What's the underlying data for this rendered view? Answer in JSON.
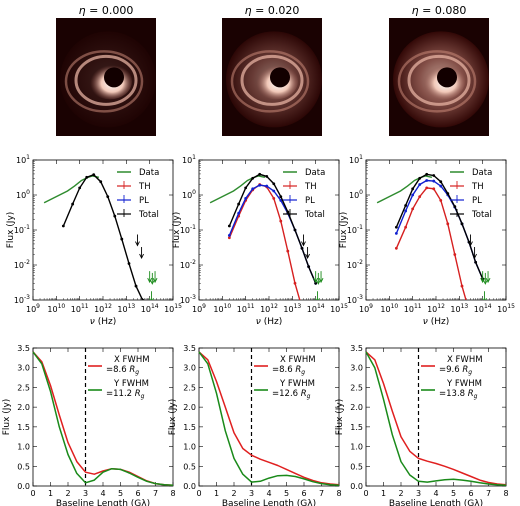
{
  "colors": {
    "data": "#2e8b2e",
    "th": "#d62020",
    "pl": "#1020d0",
    "total": "#000000",
    "green": "#1a8a1a",
    "red": "#e02020"
  },
  "images": {
    "panels": [
      {
        "eta_symbol": "η",
        "eta_value": "= 0.000",
        "glow": 0.15
      },
      {
        "eta_symbol": "η",
        "eta_value": "= 0.020",
        "glow": 0.55
      },
      {
        "eta_symbol": "η",
        "eta_value": "= 0.080",
        "glow": 0.75
      }
    ]
  },
  "sed": {
    "xlabel_symbol": "ν",
    "xlabel_unit": "(Hz)",
    "ylabel": "Flux (Jy)",
    "xticks": [
      {
        "exp": 9,
        "base": "10",
        "sup": "9"
      },
      {
        "exp": 10,
        "base": "10",
        "sup": "10"
      },
      {
        "exp": 11,
        "base": "10",
        "sup": "11"
      },
      {
        "exp": 12,
        "base": "10",
        "sup": "12"
      },
      {
        "exp": 13,
        "base": "10",
        "sup": "13"
      },
      {
        "exp": 14,
        "base": "10",
        "sup": "14"
      },
      {
        "exp": 15,
        "base": "10",
        "sup": "15"
      }
    ],
    "yticks": [
      {
        "exp": -3,
        "base": "10",
        "sup": "-3"
      },
      {
        "exp": -2,
        "base": "10",
        "sup": "-2"
      },
      {
        "exp": -1,
        "base": "10",
        "sup": "-1"
      },
      {
        "exp": 0,
        "base": "10",
        "sup": "0"
      },
      {
        "exp": 1,
        "base": "10",
        "sup": "1"
      }
    ],
    "legend": [
      "Data",
      "TH",
      "PL",
      "Total"
    ]
  },
  "vis": {
    "xlabel": "Baseline Length (Gλ)",
    "ylabel": "Flux (Jy)",
    "xticks": [
      "0",
      "1",
      "2",
      "3",
      "4",
      "5",
      "6",
      "7",
      "8"
    ],
    "yticks": [
      "0.0",
      "0.5",
      "1.0",
      "1.5",
      "2.0",
      "2.5",
      "3.0",
      "3.5"
    ],
    "legend_x_label": "X FWHM",
    "legend_y_label": "Y FWHM",
    "unit_symbol": "R",
    "unit_sub": "g",
    "panels": [
      {
        "x_fwhm": "=8.6",
        "y_fwhm": "=11.2"
      },
      {
        "x_fwhm": "=8.6",
        "y_fwhm": "=12.6"
      },
      {
        "x_fwhm": "=9.6",
        "y_fwhm": "=13.8"
      }
    ]
  },
  "chart_data": [
    {
      "type": "line",
      "title": "",
      "xlabel": "ν (Hz)",
      "ylabel": "Flux (Jy)",
      "xscale": "log",
      "yscale": "log",
      "xlim": [
        1000000000.0,
        1000000000000000.0
      ],
      "ylim": [
        0.001,
        10.0
      ],
      "series": [
        {
          "name": "Data",
          "x": [
            3000000000.0,
            10000000000.0,
            30000000000.0,
            60000000000.0,
            120000000000.0,
            230000000000.0,
            350000000000.0,
            670000000000.0
          ],
          "y": [
            0.6,
            0.9,
            1.3,
            1.8,
            2.6,
            3.2,
            3.5,
            3.2
          ]
        },
        {
          "name": "TH",
          "x": [],
          "y": []
        },
        {
          "name": "PL",
          "x": [],
          "y": []
        },
        {
          "name": "Total",
          "x": [
            20000000000.0,
            50000000000.0,
            100000000000.0,
            200000000000.0,
            400000000000.0,
            800000000000.0,
            1600000000000.0,
            3200000000000.0,
            6400000000000.0,
            13000000000000.0,
            26000000000000.0,
            50000000000000.0
          ],
          "y": [
            0.13,
            0.55,
            1.6,
            3.2,
            3.8,
            2.4,
            0.9,
            0.25,
            0.055,
            0.011,
            0.0025,
            0.001
          ]
        },
        {
          "name": "Upper limits",
          "x": [
            30000000000000.0,
            45000000000000.0,
            100000000000000.0,
            130000000000000.0,
            170000000000000.0,
            120000000000000.0
          ],
          "y": [
            0.05,
            0.022,
            0.0045,
            0.004,
            0.0045,
            0.0012
          ]
        }
      ],
      "legend": "top-right"
    },
    {
      "type": "line",
      "title": "",
      "xlabel": "ν (Hz)",
      "ylabel": "Flux (Jy)",
      "xscale": "log",
      "yscale": "log",
      "xlim": [
        1000000000.0,
        1000000000000000.0
      ],
      "ylim": [
        0.001,
        10.0
      ],
      "series": [
        {
          "name": "Data",
          "x": [
            3000000000.0,
            10000000000.0,
            30000000000.0,
            60000000000.0,
            120000000000.0,
            230000000000.0,
            350000000000.0,
            670000000000.0
          ],
          "y": [
            0.6,
            0.9,
            1.3,
            1.8,
            2.6,
            3.2,
            3.5,
            3.2
          ]
        },
        {
          "name": "TH",
          "x": [
            20000000000.0,
            50000000000.0,
            100000000000.0,
            200000000000.0,
            400000000000.0,
            800000000000.0,
            1600000000000.0,
            3200000000000.0,
            6400000000000.0,
            13000000000000.0,
            26000000000000.0
          ],
          "y": [
            0.06,
            0.25,
            0.7,
            1.4,
            2.0,
            1.7,
            0.8,
            0.18,
            0.025,
            0.003,
            0.0006
          ]
        },
        {
          "name": "PL",
          "x": [
            20000000000.0,
            50000000000.0,
            100000000000.0,
            200000000000.0,
            400000000000.0,
            800000000000.0,
            1600000000000.0,
            3200000000000.0,
            6400000000000.0,
            13000000000000.0,
            26000000000000.0,
            50000000000000.0,
            100000000000000.0
          ],
          "y": [
            0.07,
            0.3,
            0.8,
            1.5,
            1.9,
            1.8,
            1.3,
            0.7,
            0.3,
            0.1,
            0.03,
            0.009,
            0.003
          ]
        },
        {
          "name": "Total",
          "x": [
            20000000000.0,
            50000000000.0,
            100000000000.0,
            200000000000.0,
            400000000000.0,
            800000000000.0,
            1600000000000.0,
            3200000000000.0,
            6400000000000.0,
            13000000000000.0,
            26000000000000.0,
            50000000000000.0,
            100000000000000.0
          ],
          "y": [
            0.13,
            0.55,
            1.6,
            3.0,
            3.9,
            3.4,
            2.1,
            0.9,
            0.33,
            0.1,
            0.03,
            0.009,
            0.003
          ]
        },
        {
          "name": "Upper limits",
          "x": [
            30000000000000.0,
            45000000000000.0,
            100000000000000.0,
            130000000000000.0,
            170000000000000.0,
            120000000000000.0
          ],
          "y": [
            0.05,
            0.022,
            0.0045,
            0.004,
            0.0045,
            0.0012
          ]
        }
      ],
      "legend": "top-right"
    },
    {
      "type": "line",
      "title": "",
      "xlabel": "ν (Hz)",
      "ylabel": "Flux (Jy)",
      "xscale": "log",
      "yscale": "log",
      "xlim": [
        1000000000.0,
        1000000000000000.0
      ],
      "ylim": [
        0.001,
        10.0
      ],
      "series": [
        {
          "name": "Data",
          "x": [
            3000000000.0,
            10000000000.0,
            30000000000.0,
            60000000000.0,
            120000000000.0,
            230000000000.0,
            350000000000.0,
            670000000000.0
          ],
          "y": [
            0.6,
            0.9,
            1.3,
            1.8,
            2.6,
            3.2,
            3.5,
            3.2
          ]
        },
        {
          "name": "TH",
          "x": [
            20000000000.0,
            50000000000.0,
            100000000000.0,
            200000000000.0,
            400000000000.0,
            800000000000.0,
            1600000000000.0,
            3200000000000.0,
            6400000000000.0,
            13000000000000.0,
            26000000000000.0
          ],
          "y": [
            0.03,
            0.12,
            0.4,
            0.9,
            1.6,
            1.5,
            0.7,
            0.15,
            0.02,
            0.0025,
            0.0005
          ]
        },
        {
          "name": "PL",
          "x": [
            20000000000.0,
            50000000000.0,
            100000000000.0,
            200000000000.0,
            400000000000.0,
            800000000000.0,
            1600000000000.0,
            3200000000000.0,
            6400000000000.0,
            13000000000000.0,
            26000000000000.0,
            50000000000000.0,
            100000000000000.0
          ],
          "y": [
            0.08,
            0.35,
            1.0,
            2.0,
            2.6,
            2.5,
            1.8,
            1.0,
            0.45,
            0.15,
            0.045,
            0.012,
            0.004
          ]
        },
        {
          "name": "Total",
          "x": [
            20000000000.0,
            50000000000.0,
            100000000000.0,
            200000000000.0,
            400000000000.0,
            800000000000.0,
            1600000000000.0,
            3200000000000.0,
            6400000000000.0,
            13000000000000.0,
            26000000000000.0,
            50000000000000.0,
            100000000000000.0
          ],
          "y": [
            0.12,
            0.5,
            1.5,
            3.0,
            3.9,
            3.6,
            2.4,
            1.1,
            0.47,
            0.15,
            0.045,
            0.012,
            0.004
          ]
        },
        {
          "name": "Upper limits",
          "x": [
            30000000000000.0,
            45000000000000.0,
            100000000000000.0,
            130000000000000.0,
            170000000000000.0,
            120000000000000.0
          ],
          "y": [
            0.05,
            0.022,
            0.0045,
            0.004,
            0.0045,
            0.0012
          ]
        }
      ],
      "legend": "top-right"
    },
    {
      "type": "line",
      "title": "",
      "xlabel": "Baseline Length (Gλ)",
      "ylabel": "Flux (Jy)",
      "xlim": [
        0,
        8
      ],
      "ylim": [
        0,
        3.5
      ],
      "vline": 3,
      "series": [
        {
          "name": "X FWHM =8.6 Rg",
          "x": [
            0,
            0.5,
            1,
            1.5,
            2,
            2.5,
            3,
            3.5,
            4,
            4.5,
            5,
            5.5,
            6,
            6.5,
            7,
            7.5,
            8
          ],
          "y": [
            3.4,
            3.15,
            2.55,
            1.8,
            1.1,
            0.62,
            0.35,
            0.3,
            0.38,
            0.44,
            0.42,
            0.35,
            0.24,
            0.13,
            0.06,
            0.03,
            0.02
          ]
        },
        {
          "name": "Y FWHM =11.2 Rg",
          "x": [
            0,
            0.5,
            1,
            1.5,
            2,
            2.5,
            3,
            3.5,
            4,
            4.5,
            5,
            5.5,
            6,
            6.5,
            7,
            7.5,
            8
          ],
          "y": [
            3.4,
            3.1,
            2.4,
            1.5,
            0.8,
            0.32,
            0.08,
            0.15,
            0.35,
            0.44,
            0.42,
            0.33,
            0.22,
            0.12,
            0.06,
            0.03,
            0.02
          ]
        }
      ],
      "legend": "top-right"
    },
    {
      "type": "line",
      "title": "",
      "xlabel": "Baseline Length (Gλ)",
      "ylabel": "Flux (Jy)",
      "xlim": [
        0,
        8
      ],
      "ylim": [
        0,
        3.5
      ],
      "vline": 3,
      "series": [
        {
          "name": "X FWHM =8.6 Rg",
          "x": [
            0,
            0.5,
            1,
            1.5,
            2,
            2.5,
            3,
            3.5,
            4,
            4.5,
            5,
            5.5,
            6,
            6.5,
            7,
            7.5,
            8
          ],
          "y": [
            3.4,
            3.2,
            2.65,
            2.0,
            1.35,
            0.95,
            0.78,
            0.68,
            0.6,
            0.52,
            0.42,
            0.32,
            0.22,
            0.14,
            0.08,
            0.05,
            0.03
          ]
        },
        {
          "name": "Y FWHM =12.6 Rg",
          "x": [
            0,
            0.5,
            1,
            1.5,
            2,
            2.5,
            3,
            3.5,
            4,
            4.5,
            5,
            5.5,
            6,
            6.5,
            7,
            7.5,
            8
          ],
          "y": [
            3.4,
            3.1,
            2.35,
            1.4,
            0.7,
            0.3,
            0.1,
            0.12,
            0.2,
            0.26,
            0.27,
            0.24,
            0.18,
            0.11,
            0.06,
            0.03,
            0.02
          ]
        }
      ],
      "legend": "top-right"
    },
    {
      "type": "line",
      "title": "",
      "xlabel": "Baseline Length (Gλ)",
      "ylabel": "Flux (Jy)",
      "xlim": [
        0,
        8
      ],
      "ylim": [
        0,
        3.5
      ],
      "vline": 3,
      "series": [
        {
          "name": "X FWHM =9.6 Rg",
          "x": [
            0,
            0.5,
            1,
            1.5,
            2,
            2.5,
            3,
            3.5,
            4,
            4.5,
            5,
            5.5,
            6,
            6.5,
            7,
            7.5,
            8
          ],
          "y": [
            3.4,
            3.2,
            2.6,
            1.9,
            1.25,
            0.88,
            0.7,
            0.63,
            0.57,
            0.5,
            0.42,
            0.33,
            0.24,
            0.15,
            0.09,
            0.05,
            0.03
          ]
        },
        {
          "name": "Y FWHM =13.8 Rg",
          "x": [
            0,
            0.5,
            1,
            1.5,
            2,
            2.5,
            3,
            3.5,
            4,
            4.5,
            5,
            5.5,
            6,
            6.5,
            7,
            7.5,
            8
          ],
          "y": [
            3.4,
            3.0,
            2.2,
            1.3,
            0.62,
            0.28,
            0.12,
            0.1,
            0.13,
            0.16,
            0.17,
            0.15,
            0.12,
            0.08,
            0.05,
            0.03,
            0.02
          ]
        }
      ],
      "legend": "top-right"
    }
  ]
}
